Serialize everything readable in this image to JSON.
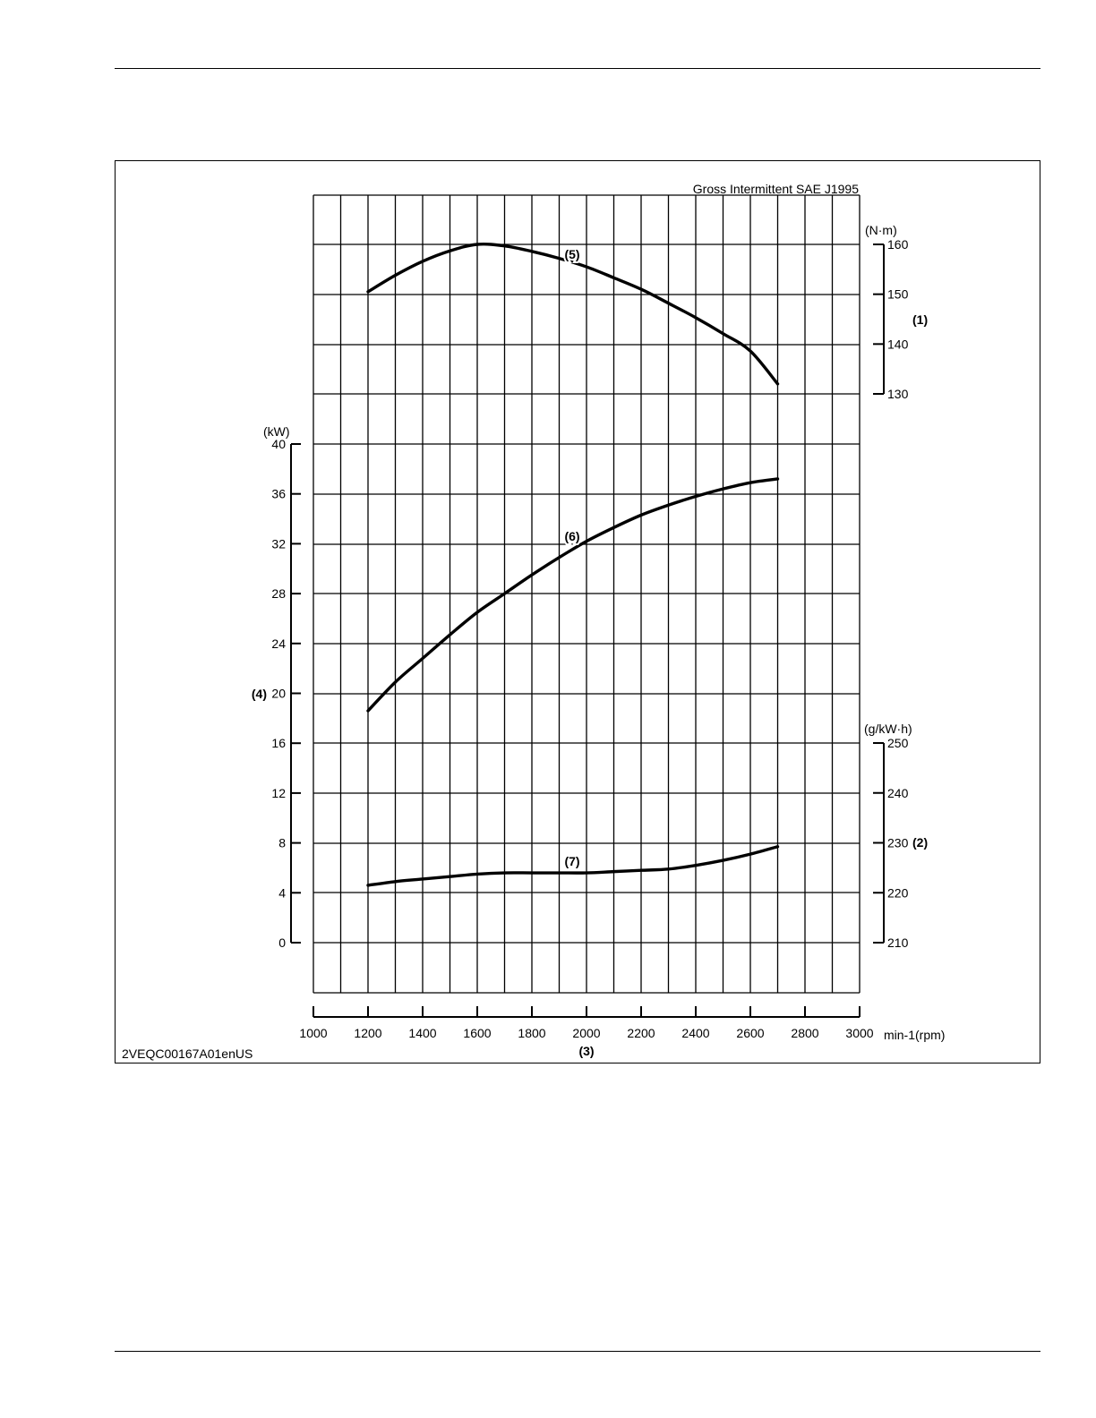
{
  "page": {
    "figure_id": "2VEQC00167A01enUS"
  },
  "chart_data": {
    "type": "line",
    "title": "Gross Intermittent SAE J1995",
    "x": {
      "label": "min-1(rpm)",
      "ref": "(3)",
      "range": [
        1000,
        3000
      ],
      "ticks": [
        1000,
        1200,
        1400,
        1600,
        1800,
        2000,
        2200,
        2400,
        2600,
        2800,
        3000
      ]
    },
    "axes": {
      "torque": {
        "unit": "(N·m)",
        "ref": "(1)",
        "side": "right",
        "range": [
          130,
          160
        ],
        "ticks": [
          130,
          140,
          150,
          160
        ]
      },
      "power": {
        "unit": "(kW)",
        "ref": "(4)",
        "side": "left",
        "range": [
          0,
          40
        ],
        "ticks": [
          0,
          4,
          8,
          12,
          16,
          20,
          24,
          28,
          32,
          36,
          40
        ]
      },
      "fuel": {
        "unit": "(g/kW·h)",
        "ref": "(2)",
        "side": "right",
        "range": [
          210,
          250
        ],
        "ticks": [
          210,
          220,
          230,
          240,
          250
        ]
      }
    },
    "grid": true,
    "series": [
      {
        "name": "(5)",
        "axis": "torque",
        "x": [
          1200,
          1300,
          1400,
          1500,
          1600,
          1700,
          1800,
          1900,
          2000,
          2100,
          2200,
          2300,
          2400,
          2500,
          2600,
          2700
        ],
        "y": [
          150.5,
          153.8,
          156.6,
          158.7,
          160.0,
          159.7,
          158.6,
          157.2,
          155.5,
          153.3,
          151.0,
          148.2,
          145.3,
          142.1,
          138.6,
          132.0
        ]
      },
      {
        "name": "(6)",
        "axis": "power",
        "x": [
          1200,
          1300,
          1400,
          1500,
          1600,
          1700,
          1800,
          1900,
          2000,
          2100,
          2200,
          2300,
          2400,
          2500,
          2600,
          2700
        ],
        "y": [
          18.6,
          20.9,
          22.8,
          24.7,
          26.5,
          28.0,
          29.5,
          30.9,
          32.2,
          33.3,
          34.3,
          35.1,
          35.8,
          36.4,
          36.9,
          37.2
        ]
      },
      {
        "name": "(7)",
        "axis": "power",
        "x": [
          1200,
          1300,
          1400,
          1500,
          1600,
          1700,
          1800,
          1900,
          2000,
          2100,
          2200,
          2300,
          2400,
          2500,
          2600,
          2700
        ],
        "y": [
          4.6,
          4.9,
          5.1,
          5.3,
          5.5,
          5.6,
          5.6,
          5.6,
          5.6,
          5.7,
          5.8,
          5.9,
          6.2,
          6.6,
          7.1,
          7.7
        ]
      }
    ]
  }
}
